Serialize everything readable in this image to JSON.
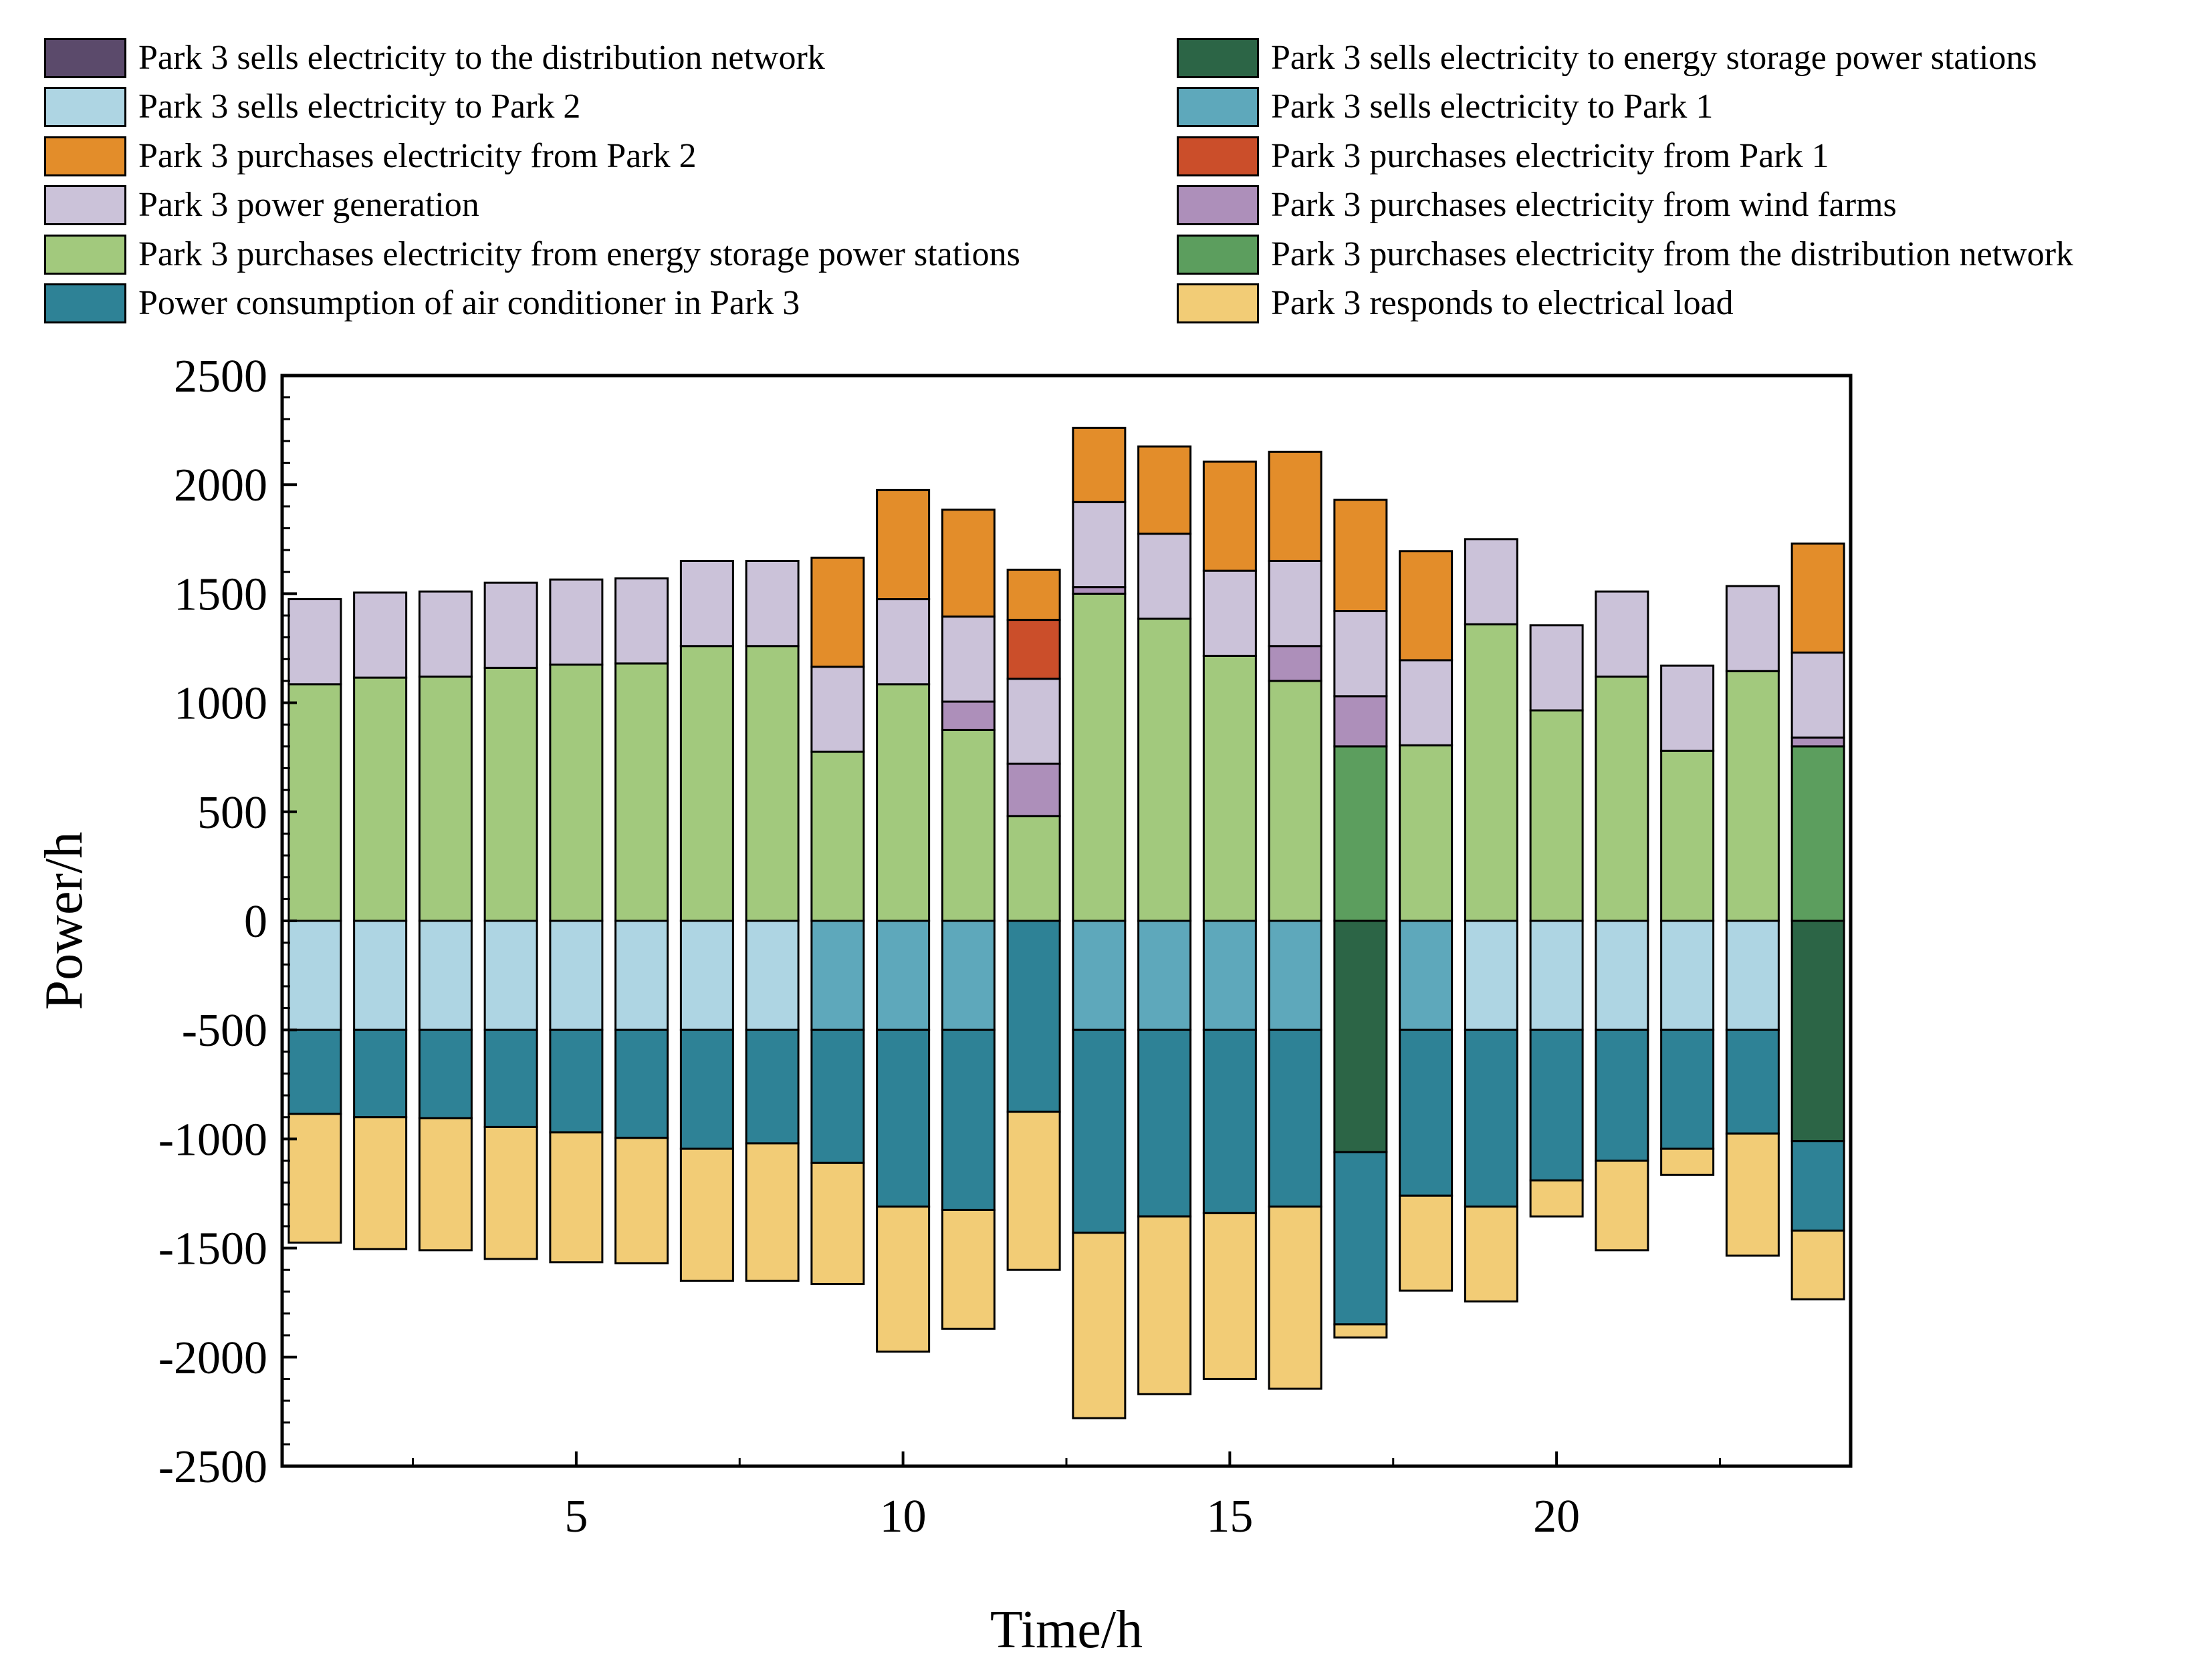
{
  "chart_data": {
    "type": "bar",
    "stacked": true,
    "xlabel": "Time/h",
    "ylabel": "Power/h",
    "ylim": [
      -2500,
      2500
    ],
    "xlim": [
      0.5,
      24.5
    ],
    "y_ticks": [
      -2500,
      -2000,
      -1500,
      -1000,
      -500,
      0,
      500,
      1000,
      1500,
      2000,
      2500
    ],
    "y_tick_labels": [
      "-2500",
      "-2000",
      "-1500",
      "-1000",
      "-500",
      "0",
      "500",
      "1000",
      "1500",
      "2000",
      "2500"
    ],
    "x_ticks": [
      5,
      10,
      15,
      20
    ],
    "x_tick_labels": [
      "5",
      "10",
      "15",
      "20"
    ],
    "grid": false,
    "legend_position": "top",
    "categories": [
      1,
      2,
      3,
      4,
      5,
      6,
      7,
      8,
      9,
      10,
      11,
      12,
      13,
      14,
      15,
      16,
      17,
      18,
      19,
      20,
      21,
      22,
      23,
      24
    ],
    "series": [
      {
        "name": "Park 3 sells electricity to the distribution network",
        "color": "#5b4a6b",
        "values": [
          0,
          0,
          0,
          0,
          0,
          0,
          0,
          0,
          0,
          0,
          0,
          0,
          0,
          0,
          0,
          0,
          0,
          0,
          0,
          0,
          0,
          0,
          0,
          0
        ]
      },
      {
        "name": "Park 3 sells electricity to energy storage power stations",
        "color": "#2c6546",
        "values": [
          0,
          0,
          0,
          0,
          0,
          0,
          0,
          0,
          0,
          0,
          0,
          0,
          0,
          0,
          0,
          0,
          -1060,
          0,
          0,
          0,
          0,
          0,
          0,
          -1010
        ]
      },
      {
        "name": "Park 3 sells electricity to Park 2",
        "color": "#aed5e3",
        "values": [
          -500,
          -500,
          -500,
          -500,
          -500,
          -500,
          -500,
          -500,
          0,
          0,
          0,
          0,
          0,
          0,
          0,
          0,
          0,
          0,
          -500,
          -500,
          -500,
          -500,
          -500,
          0
        ]
      },
      {
        "name": "Park 3 sells electricity to Park 1",
        "color": "#5ea8bb",
        "values": [
          0,
          0,
          0,
          0,
          0,
          0,
          0,
          0,
          -500,
          -500,
          -500,
          0,
          -500,
          -500,
          -500,
          -500,
          0,
          -500,
          0,
          0,
          0,
          0,
          0,
          0
        ]
      },
      {
        "name": "Park 3 purchases electricity from Park 2",
        "color": "#e38d2a",
        "values": [
          0,
          0,
          0,
          0,
          0,
          0,
          0,
          0,
          500,
          500,
          490,
          230,
          340,
          400,
          500,
          500,
          510,
          500,
          0,
          0,
          0,
          0,
          0,
          500
        ]
      },
      {
        "name": "Park 3 purchases electricity from Park 1",
        "color": "#cb4e2a",
        "values": [
          0,
          0,
          0,
          0,
          0,
          0,
          0,
          0,
          0,
          0,
          0,
          270,
          0,
          0,
          0,
          0,
          0,
          0,
          0,
          0,
          0,
          0,
          0,
          0
        ]
      },
      {
        "name": "Park 3 power generation",
        "color": "#cbc2d9",
        "values": [
          390,
          390,
          390,
          390,
          390,
          390,
          390,
          390,
          390,
          390,
          390,
          390,
          390,
          390,
          390,
          390,
          390,
          390,
          390,
          390,
          390,
          390,
          390,
          390
        ]
      },
      {
        "name": "Park 3 purchases electricity from wind farms",
        "color": "#ad8fba",
        "values": [
          0,
          0,
          0,
          0,
          0,
          0,
          0,
          0,
          0,
          0,
          130,
          240,
          30,
          0,
          0,
          160,
          230,
          0,
          0,
          0,
          0,
          0,
          0,
          40
        ]
      },
      {
        "name": "Park 3 purchases electricity from energy storage power stations",
        "color": "#a2c97d",
        "values": [
          1085,
          1115,
          1120,
          1160,
          1175,
          1180,
          1260,
          1260,
          775,
          1085,
          875,
          480,
          1500,
          1385,
          1215,
          1100,
          0,
          805,
          1360,
          965,
          1120,
          780,
          1145,
          0
        ]
      },
      {
        "name": "Park 3 purchases electricity from the distribution network",
        "color": "#5c9e5e",
        "values": [
          0,
          0,
          0,
          0,
          0,
          0,
          0,
          0,
          0,
          0,
          0,
          0,
          0,
          0,
          0,
          0,
          800,
          0,
          0,
          0,
          0,
          0,
          0,
          800
        ]
      },
      {
        "name": "Power consumption of air conditioner in Park 3",
        "color": "#2e8296",
        "values": [
          -385,
          -400,
          -405,
          -445,
          -470,
          -495,
          -545,
          -520,
          -610,
          -810,
          -825,
          -875,
          -930,
          -855,
          -840,
          -810,
          -790,
          -760,
          -810,
          -690,
          -600,
          -545,
          -475,
          -410
        ]
      },
      {
        "name": "Park 3 responds to electrical load",
        "color": "#f2cc76",
        "values": [
          -590,
          -605,
          -605,
          -605,
          -595,
          -575,
          -605,
          -630,
          -555,
          -665,
          -545,
          -725,
          -850,
          -815,
          -760,
          -835,
          -60,
          -435,
          -435,
          -165,
          -410,
          -120,
          -560,
          -315
        ]
      }
    ],
    "stack_order_positive": [
      "Park 3 purchases electricity from energy storage power stations",
      "Park 3 purchases electricity from the distribution network",
      "Park 3 purchases electricity from wind farms",
      "Park 3 power generation",
      "Park 3 purchases electricity from Park 1",
      "Park 3 purchases electricity from Park 2"
    ],
    "stack_order_negative": [
      "Park 3 sells electricity to Park 2",
      "Park 3 sells electricity to Park 1",
      "Park 3 sells electricity to energy storage power stations",
      "Park 3 sells electricity to the distribution network",
      "Power consumption of air conditioner in Park 3",
      "Park 3 responds to electrical load"
    ]
  },
  "legend": {
    "left": [
      {
        "label": "Park 3 sells electricity to the distribution network",
        "color": "#5b4a6b",
        "name": "legend-sell-distribution-network"
      },
      {
        "label": "Park 3 sells electricity to Park 2",
        "color": "#aed5e3",
        "name": "legend-sell-park-2"
      },
      {
        "label": "Park 3 purchases electricity from Park 2",
        "color": "#e38d2a",
        "name": "legend-purchase-park-2"
      },
      {
        "label": "Park 3 power generation",
        "color": "#cbc2d9",
        "name": "legend-power-generation"
      },
      {
        "label": "Park 3 purchases electricity from energy storage power stations",
        "color": "#a2c97d",
        "name": "legend-purchase-energy-storage"
      },
      {
        "label": "Power consumption of air conditioner in Park 3",
        "color": "#2e8296",
        "name": "legend-air-conditioner"
      }
    ],
    "right": [
      {
        "label": "Park 3 sells electricity to energy storage power stations",
        "color": "#2c6546",
        "name": "legend-sell-energy-storage"
      },
      {
        "label": "Park 3 sells electricity to Park 1",
        "color": "#5ea8bb",
        "name": "legend-sell-park-1"
      },
      {
        "label": "Park 3 purchases electricity from Park 1",
        "color": "#cb4e2a",
        "name": "legend-purchase-park-1"
      },
      {
        "label": "Park 3 purchases electricity from wind farms",
        "color": "#ad8fba",
        "name": "legend-purchase-wind-farms"
      },
      {
        "label": "Park 3 purchases electricity from the distribution network",
        "color": "#5c9e5e",
        "name": "legend-purchase-distribution-network"
      },
      {
        "label": "Park 3 responds to electrical load",
        "color": "#f2cc76",
        "name": "legend-electrical-load-response"
      }
    ]
  }
}
